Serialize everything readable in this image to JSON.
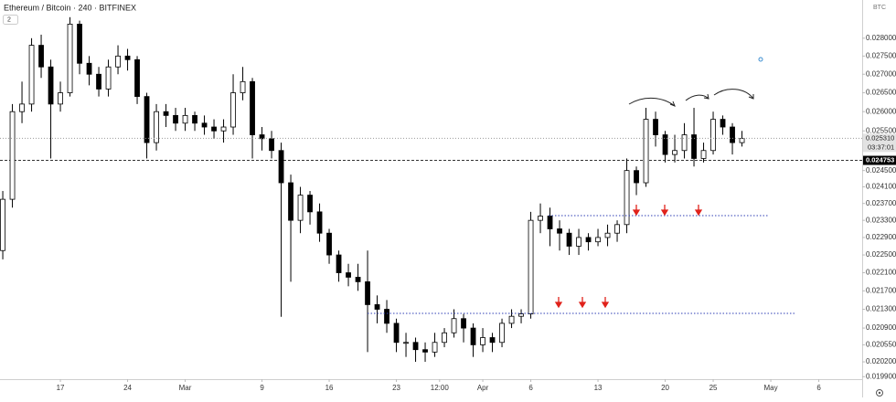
{
  "chart_data": {
    "type": "candlestick",
    "title": "Ethereum / Bitcoin · 240 · BITFINEX",
    "indicator_count": 2,
    "currency": "BTC",
    "log_scale": true,
    "grid": false,
    "up_color": "#ffffff",
    "down_color": "#000000",
    "x": [
      -6,
      -5,
      -4,
      -3,
      -2,
      -1,
      0,
      1,
      2,
      3,
      4,
      5,
      6,
      7,
      8,
      9,
      10,
      11,
      12,
      13,
      14,
      15,
      16,
      17,
      18,
      19,
      20,
      21,
      22,
      23,
      24,
      25,
      26,
      27,
      28,
      29,
      30,
      31,
      32,
      33,
      34,
      35,
      36,
      37,
      38,
      39,
      40,
      41,
      42,
      43,
      44,
      45,
      46,
      47,
      48,
      49,
      50,
      51,
      52,
      53,
      54,
      55,
      56,
      57,
      58,
      59,
      60,
      61,
      62,
      63,
      64,
      65,
      66,
      67,
      68,
      69,
      70,
      71
    ],
    "open": [
      0.0226,
      0.0238,
      0.026,
      0.0262,
      0.0278,
      0.0272,
      0.0262,
      0.0265,
      0.0284,
      0.0273,
      0.027,
      0.0266,
      0.0272,
      0.0275,
      0.0274,
      0.0264,
      0.0252,
      0.026,
      0.0259,
      0.0257,
      0.0259,
      0.0257,
      0.0256,
      0.0255,
      0.0256,
      0.0265,
      0.0268,
      0.0254,
      0.0253,
      0.025,
      0.0242,
      0.0233,
      0.0239,
      0.0235,
      0.023,
      0.0225,
      0.0221,
      0.022,
      0.0219,
      0.0214,
      0.0213,
      0.021,
      0.0206,
      0.0206,
      0.02045,
      0.0204,
      0.0206,
      0.0208,
      0.0211,
      0.0209,
      0.02055,
      0.0207,
      0.0206,
      0.021,
      0.02115,
      0.0212,
      0.0233,
      0.0234,
      0.0231,
      0.023,
      0.0227,
      0.0229,
      0.0228,
      0.0229,
      0.023,
      0.0232,
      0.0245,
      0.0242,
      0.0258,
      0.0254,
      0.0249,
      0.025,
      0.0254,
      0.0248,
      0.025,
      0.0258,
      0.0256,
      0.0252
    ],
    "high": [
      0.024,
      0.0262,
      0.0268,
      0.028,
      0.0281,
      0.0274,
      0.0268,
      0.0286,
      0.0285,
      0.0275,
      0.0272,
      0.0274,
      0.0278,
      0.0277,
      0.0275,
      0.0265,
      0.0262,
      0.0262,
      0.0261,
      0.0261,
      0.026,
      0.0259,
      0.0258,
      0.0258,
      0.027,
      0.0272,
      0.0269,
      0.0256,
      0.0255,
      0.0252,
      0.0244,
      0.0241,
      0.024,
      0.0237,
      0.0231,
      0.0226,
      0.0223,
      0.0223,
      0.0226,
      0.0216,
      0.0215,
      0.0211,
      0.0208,
      0.0207,
      0.0206,
      0.0208,
      0.0209,
      0.0213,
      0.0212,
      0.021,
      0.0209,
      0.0208,
      0.0211,
      0.0213,
      0.0213,
      0.0235,
      0.0237,
      0.0236,
      0.0233,
      0.0231,
      0.0231,
      0.023,
      0.0231,
      0.0232,
      0.0233,
      0.0248,
      0.0246,
      0.0261,
      0.026,
      0.0255,
      0.0254,
      0.0257,
      0.0261,
      0.0252,
      0.026,
      0.0259,
      0.0257,
      0.0255
    ],
    "low": [
      0.0224,
      0.0236,
      0.0257,
      0.026,
      0.0269,
      0.0248,
      0.026,
      0.0264,
      0.027,
      0.0267,
      0.0264,
      0.0264,
      0.027,
      0.0271,
      0.0262,
      0.0248,
      0.025,
      0.0256,
      0.0255,
      0.0255,
      0.0255,
      0.0254,
      0.0253,
      0.0252,
      0.0254,
      0.0263,
      0.0248,
      0.025,
      0.0248,
      0.02114,
      0.0219,
      0.023,
      0.0232,
      0.0228,
      0.0223,
      0.0219,
      0.0218,
      0.0217,
      0.0204,
      0.021,
      0.0208,
      0.0204,
      0.0203,
      0.0202,
      0.0202,
      0.0203,
      0.0205,
      0.0207,
      0.0206,
      0.0203,
      0.0204,
      0.0204,
      0.0205,
      0.0209,
      0.021,
      0.0211,
      0.023,
      0.0227,
      0.0226,
      0.0225,
      0.0225,
      0.0226,
      0.0227,
      0.0227,
      0.0228,
      0.023,
      0.0239,
      0.0241,
      0.0251,
      0.0247,
      0.0247,
      0.0248,
      0.0246,
      0.0247,
      0.0249,
      0.0254,
      0.0249,
      0.0251
    ],
    "close": [
      0.0238,
      0.026,
      0.0262,
      0.0278,
      0.0272,
      0.0262,
      0.0265,
      0.0284,
      0.0273,
      0.027,
      0.0266,
      0.0272,
      0.0275,
      0.0274,
      0.0264,
      0.0252,
      0.026,
      0.0259,
      0.0257,
      0.0259,
      0.0257,
      0.0256,
      0.0255,
      0.0256,
      0.0265,
      0.0268,
      0.0254,
      0.0253,
      0.025,
      0.0242,
      0.0233,
      0.0239,
      0.0235,
      0.023,
      0.0225,
      0.0221,
      0.022,
      0.0219,
      0.0214,
      0.0213,
      0.021,
      0.0206,
      0.0206,
      0.02045,
      0.0204,
      0.0206,
      0.0208,
      0.0211,
      0.0209,
      0.02055,
      0.0207,
      0.0206,
      0.021,
      0.02115,
      0.0212,
      0.0233,
      0.0234,
      0.0231,
      0.023,
      0.0227,
      0.0229,
      0.0228,
      0.0229,
      0.023,
      0.0232,
      0.0245,
      0.0242,
      0.0258,
      0.0254,
      0.0249,
      0.025,
      0.0254,
      0.0248,
      0.025,
      0.0258,
      0.0256,
      0.0252,
      0.02531
    ],
    "xlim": [
      -6.29,
      83.52
    ],
    "xticks": [
      {
        "value": 0,
        "label": "17"
      },
      {
        "value": 7,
        "label": "24"
      },
      {
        "value": 13,
        "label": "Mar"
      },
      {
        "value": 21,
        "label": "9"
      },
      {
        "value": 28,
        "label": "16"
      },
      {
        "value": 35,
        "label": "23"
      },
      {
        "value": 39.5,
        "label": "12:00"
      },
      {
        "value": 44,
        "label": "Apr"
      },
      {
        "value": 49,
        "label": "6"
      },
      {
        "value": 56,
        "label": "13"
      },
      {
        "value": 63,
        "label": "20"
      },
      {
        "value": 68,
        "label": "25"
      },
      {
        "value": 74,
        "label": "May"
      },
      {
        "value": 79,
        "label": "6"
      }
    ],
    "ylim": [
      0.01985,
      0.0291
    ],
    "yticks": [
      {
        "value": 0.028,
        "label": "0.028000"
      },
      {
        "value": 0.0275,
        "label": "0.027500"
      },
      {
        "value": 0.027,
        "label": "0.027000"
      },
      {
        "value": 0.0265,
        "label": "0.026500"
      },
      {
        "value": 0.026,
        "label": "0.026000"
      },
      {
        "value": 0.0255,
        "label": "0.025500"
      },
      {
        "value": 0.0245,
        "label": "0.024500"
      },
      {
        "value": 0.0241,
        "label": "0.024100"
      },
      {
        "value": 0.0237,
        "label": "0.023700"
      },
      {
        "value": 0.0233,
        "label": "0.023300"
      },
      {
        "value": 0.0229,
        "label": "0.022900"
      },
      {
        "value": 0.0225,
        "label": "0.022500"
      },
      {
        "value": 0.0221,
        "label": "0.022100"
      },
      {
        "value": 0.0217,
        "label": "0.021700"
      },
      {
        "value": 0.0213,
        "label": "0.021300"
      },
      {
        "value": 0.0209,
        "label": "0.020900"
      },
      {
        "value": 0.02055,
        "label": "0.020550"
      },
      {
        "value": 0.0202,
        "label": "0.020200"
      },
      {
        "value": 0.0199,
        "label": "0.019900"
      }
    ],
    "current_price": {
      "value": 0.02531,
      "label": "0.025310",
      "countdown": "03:37:01"
    },
    "hline": 0.024753
  }
}
